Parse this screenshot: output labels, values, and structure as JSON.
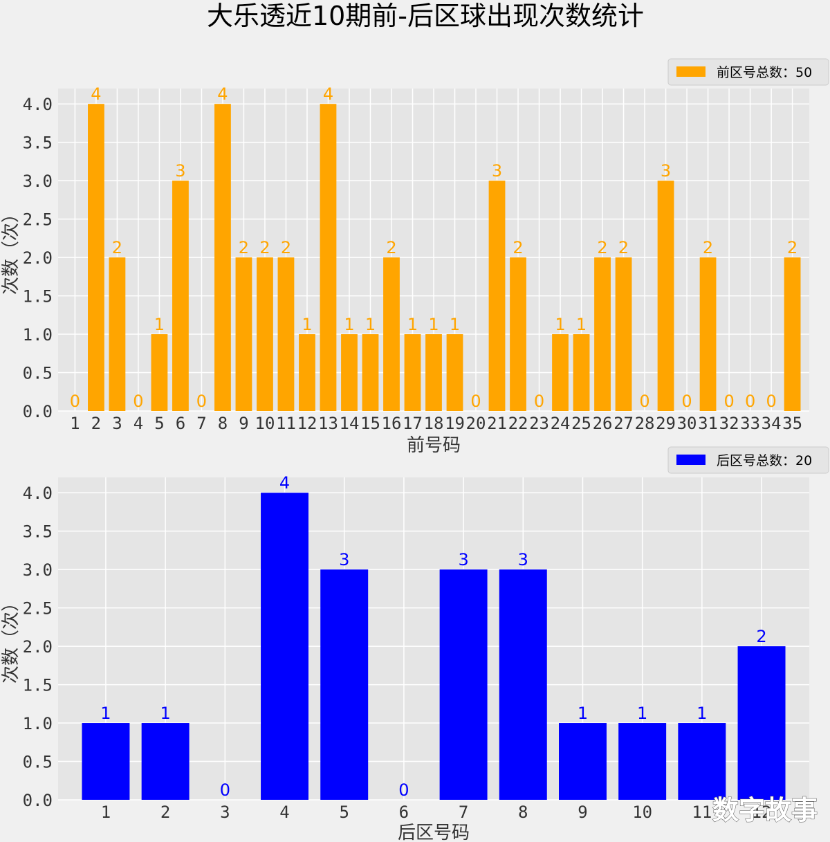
{
  "title": "大乐透近10期前-后区球出现次数统计",
  "watermark": "数字故事",
  "chart_data": [
    {
      "type": "bar",
      "color": "#ffa500",
      "xlabel": "前号码",
      "ylabel": "次数（次）",
      "ylim": [
        0,
        4.2
      ],
      "yticks": [
        "0.0",
        "0.5",
        "1.0",
        "1.5",
        "2.0",
        "2.5",
        "3.0",
        "3.5",
        "4.0"
      ],
      "categories": [
        "1",
        "2",
        "3",
        "4",
        "5",
        "6",
        "7",
        "8",
        "9",
        "10",
        "11",
        "12",
        "13",
        "14",
        "15",
        "16",
        "17",
        "18",
        "19",
        "20",
        "21",
        "22",
        "23",
        "24",
        "25",
        "26",
        "27",
        "28",
        "29",
        "30",
        "31",
        "32",
        "33",
        "34",
        "35"
      ],
      "values": [
        0,
        4,
        2,
        0,
        1,
        3,
        0,
        4,
        2,
        2,
        2,
        1,
        4,
        1,
        1,
        2,
        1,
        1,
        1,
        0,
        3,
        2,
        0,
        1,
        1,
        2,
        2,
        0,
        3,
        0,
        2,
        0,
        0,
        0,
        2
      ],
      "legend": "前区号总数：50",
      "legend_position": "top-right",
      "grid": true
    },
    {
      "type": "bar",
      "color": "#0000ff",
      "xlabel": "后区号码",
      "ylabel": "次数（次）",
      "ylim": [
        0,
        4.2
      ],
      "yticks": [
        "0.0",
        "0.5",
        "1.0",
        "1.5",
        "2.0",
        "2.5",
        "3.0",
        "3.5",
        "4.0"
      ],
      "categories": [
        "1",
        "2",
        "3",
        "4",
        "5",
        "6",
        "7",
        "8",
        "9",
        "10",
        "11",
        "12"
      ],
      "values": [
        1,
        1,
        0,
        4,
        3,
        0,
        3,
        3,
        1,
        1,
        1,
        2
      ],
      "legend": "后区号总数：20",
      "legend_position": "top-right",
      "grid": true
    }
  ]
}
